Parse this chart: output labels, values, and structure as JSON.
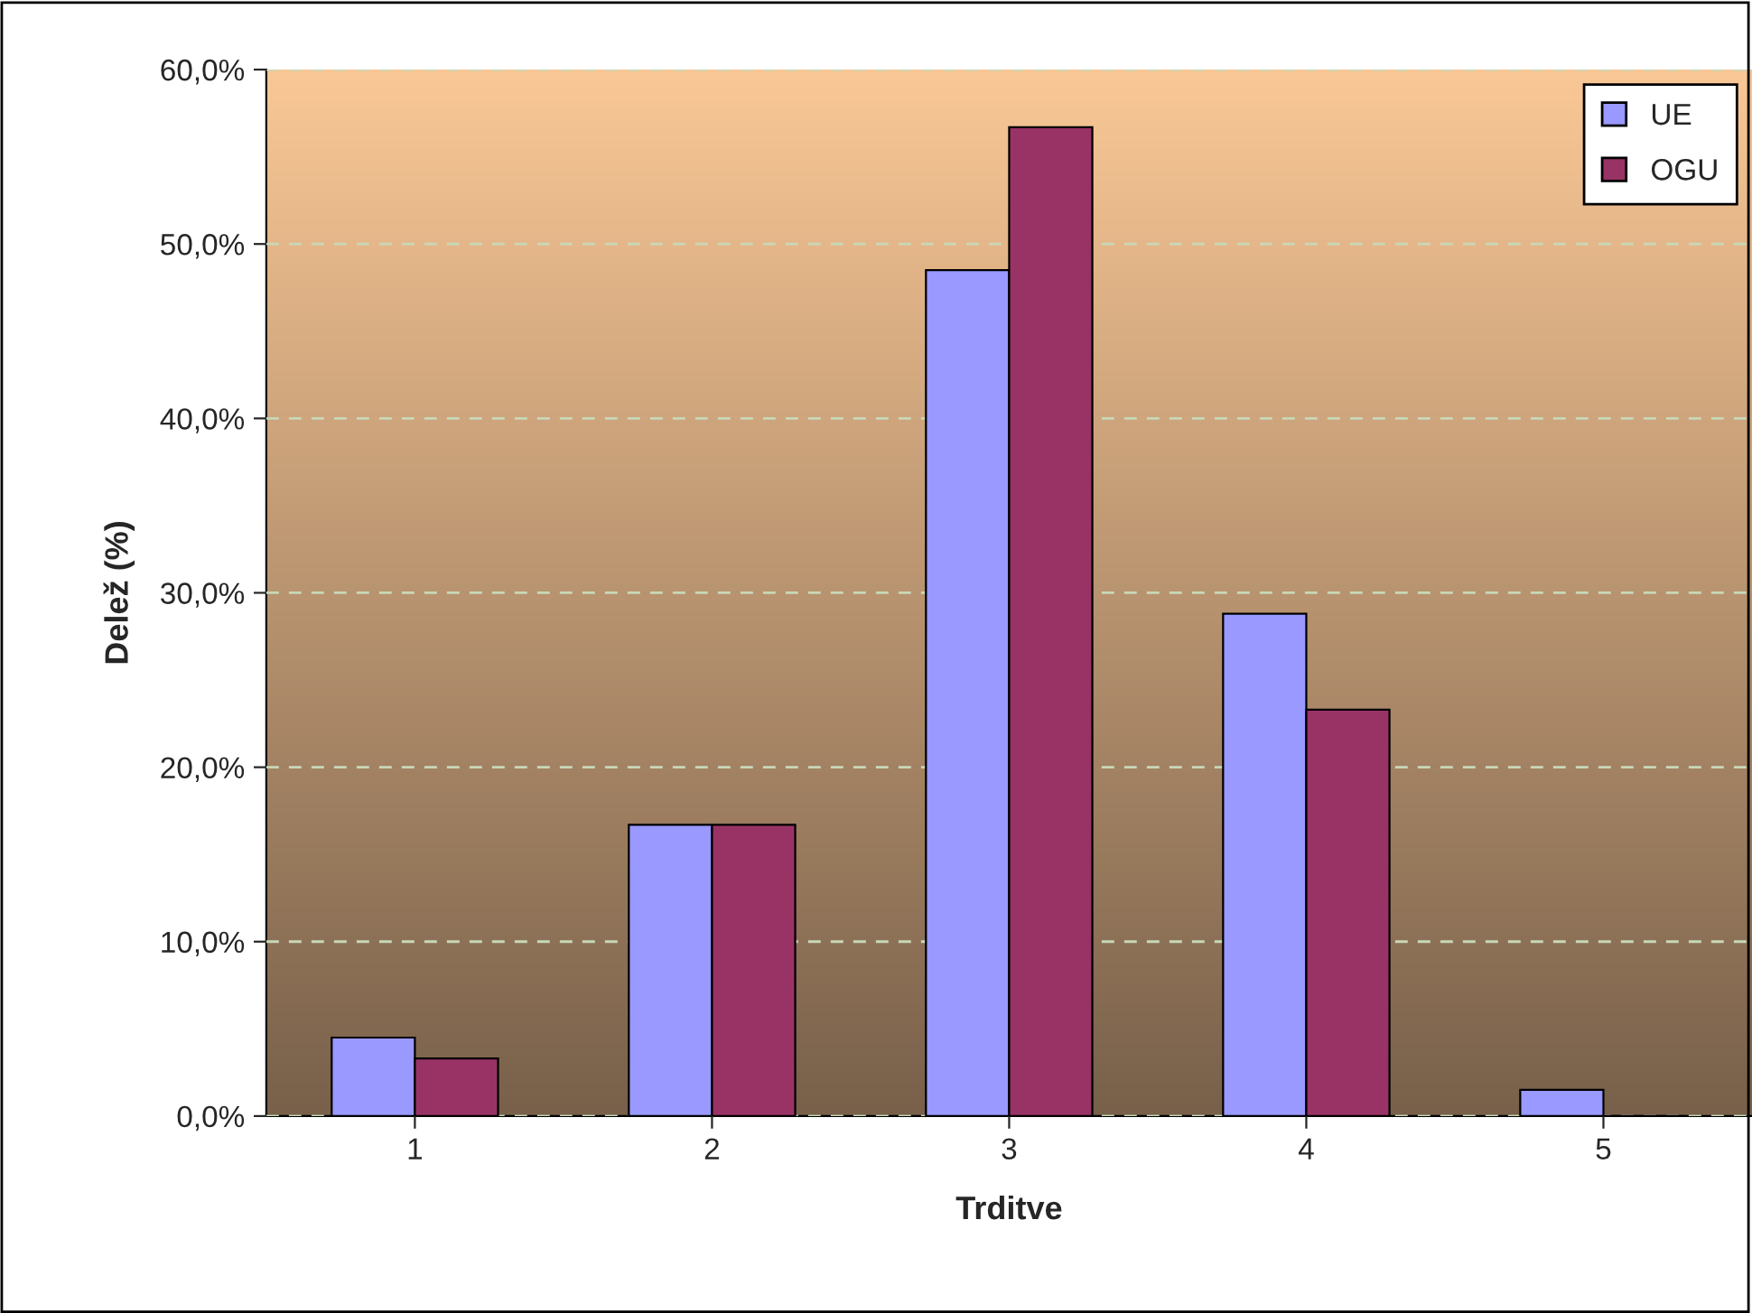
{
  "chart_data": {
    "type": "bar",
    "xlabel": "Trditve",
    "ylabel": "Delež (%)",
    "categories": [
      "1",
      "2",
      "3",
      "4",
      "5"
    ],
    "series": [
      {
        "name": "UE",
        "color": "#9999ff",
        "values": [
          4.5,
          16.7,
          48.5,
          28.8,
          1.5
        ]
      },
      {
        "name": "OGU",
        "color": "#993366",
        "values": [
          3.3,
          16.7,
          56.7,
          23.3,
          0
        ]
      }
    ],
    "ylim": [
      0,
      60
    ],
    "yticks": [
      {
        "value": 0,
        "label": "0,0%"
      },
      {
        "value": 10,
        "label": "10,0%"
      },
      {
        "value": 20,
        "label": "20,0%"
      },
      {
        "value": 30,
        "label": "30,0%"
      },
      {
        "value": 40,
        "label": "40,0%"
      },
      {
        "value": 50,
        "label": "50,0%"
      },
      {
        "value": 60,
        "label": "60,0%"
      }
    ],
    "grid": "y",
    "legend": "top right"
  }
}
